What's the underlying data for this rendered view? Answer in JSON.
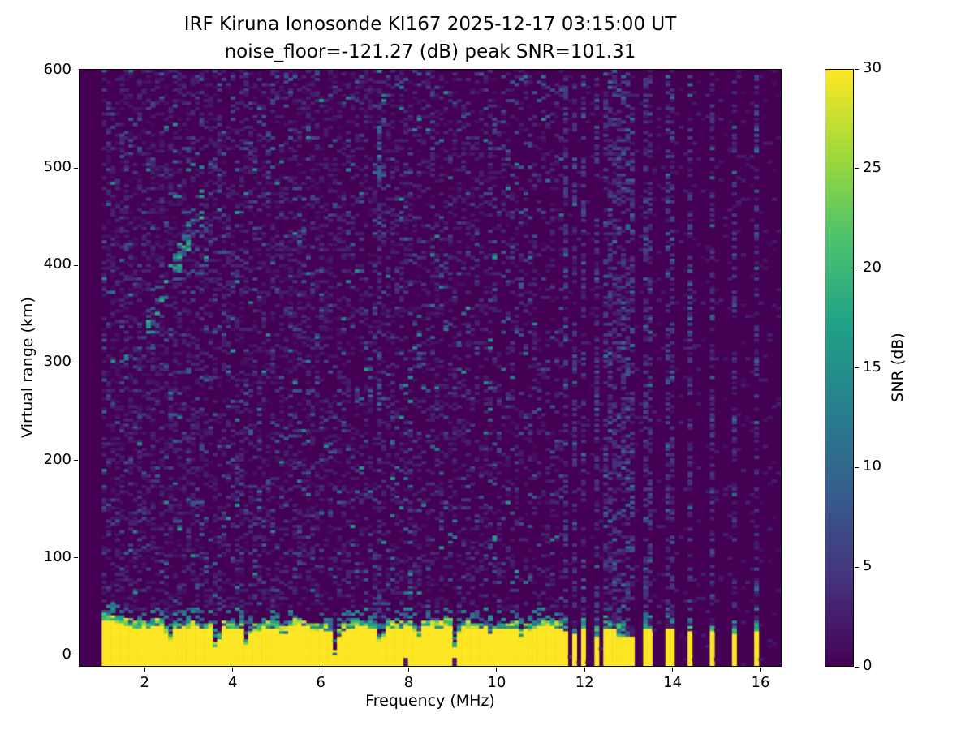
{
  "title": {
    "line1": "IRF Kiruna Ionosonde KI167 2025-12-17 03:15:00  UT",
    "line2": "noise_floor=-121.27 (dB) peak SNR=101.31"
  },
  "chart_data": {
    "type": "heatmap",
    "title": "IRF Kiruna Ionosonde KI167 2025-12-17 03:15:00  UT",
    "subtitle": "noise_floor=-121.27 (dB) peak SNR=101.31",
    "xlabel": "Frequency (MHz)",
    "ylabel": "Virtual range (km)",
    "xlim": [
      0.5,
      16.48
    ],
    "ylim": [
      -12,
      602
    ],
    "x_ticks": [
      2,
      4,
      6,
      8,
      10,
      12,
      14,
      16
    ],
    "y_ticks": [
      0,
      100,
      200,
      300,
      400,
      500,
      600
    ],
    "grid": false,
    "noise_floor_db": -121.27,
    "peak_snr_db": 101.31,
    "colorbar": {
      "label": "SNR (dB)",
      "ticks": [
        0,
        5,
        10,
        15,
        20,
        25,
        30
      ],
      "lim": [
        0,
        30
      ],
      "colormap": "viridis",
      "stops": [
        "#440154",
        "#46327e",
        "#365c8d",
        "#277f8e",
        "#1fa187",
        "#4ac16d",
        "#a0da39",
        "#fde725"
      ]
    },
    "features": {
      "data_start_mhz": 1.0,
      "ground_clutter_band": {
        "freq_range_mhz": [
          1.0,
          11.57
        ],
        "top_km_range": [
          26,
          44
        ],
        "snr_db": 30,
        "fringe_snr_db_range": [
          8,
          25
        ]
      },
      "band_notches_mhz": [
        2.55,
        3.62,
        4.3,
        5.15,
        6.33,
        7.37,
        8.2,
        9.07,
        9.9,
        10.55
      ],
      "band_notch_depth": [
        0.4,
        0.8,
        0.55,
        0.3,
        0.9,
        0.6,
        0.35,
        0.75,
        0.3,
        0.3
      ],
      "bottom_dark_blobs_mhz": [
        7.92,
        9.07
      ],
      "pulsed_stripes_mhz": [
        11.62,
        11.82,
        12.02,
        12.24,
        12.45,
        12.64,
        12.84,
        13.04,
        13.45,
        13.95,
        14.45,
        14.95,
        15.45,
        15.95
      ],
      "stripe_top_km_range": [
        22,
        36
      ],
      "echo_trace": {
        "freq_range_mhz": [
          2.05,
          3.3
        ],
        "range_km": [
          330,
          465
        ],
        "snr_db_range": [
          6,
          20
        ]
      },
      "rfi_column": {
        "freq_mhz": 7.34,
        "range_km": [
          40,
          580
        ],
        "bright_range_km": [
          485,
          545
        ],
        "snr_db_range": [
          2,
          14
        ]
      },
      "background_noise": {
        "snr_db_range": [
          0,
          12
        ],
        "dash_size_px": [
          6,
          3
        ],
        "dash_density_low_freq": 0.32,
        "dash_density_high_freq": 0.06
      }
    }
  }
}
